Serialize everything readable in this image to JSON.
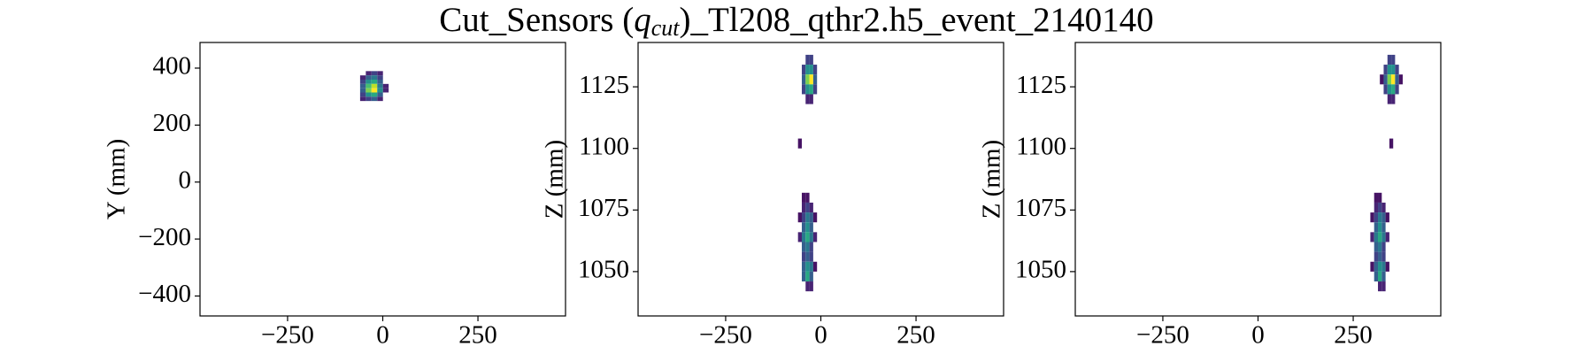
{
  "title": {
    "prefix": "Cut_Sensors (",
    "var": "q",
    "sub": "cut",
    "suffix": ")_Tl208_qthr2.h5_event_2140140"
  },
  "chart_data": [
    {
      "type": "heatmap",
      "ylabel": "Y (mm)",
      "colormap": "viridis",
      "bin_width": [
        15,
        15
      ],
      "xlim": [
        -480,
        480
      ],
      "ylim": [
        -470,
        490
      ],
      "xticks": [
        {
          "value": -250,
          "label": "−250"
        },
        0,
        250
      ],
      "yticks": [
        {
          "value": -400,
          "label": "−400"
        },
        {
          "value": -200,
          "label": "−200"
        },
        0,
        200,
        400
      ],
      "x": [
        -37,
        -22,
        -7,
        -52,
        -37,
        -22,
        -7,
        -52,
        -37,
        -22,
        -7,
        -52,
        -37,
        -22,
        -7,
        8,
        -52,
        -37,
        -22,
        -7,
        8,
        -52,
        -37,
        -22,
        -7,
        -52,
        -37,
        -22,
        -7
      ],
      "y": [
        382,
        382,
        382,
        367,
        367,
        367,
        367,
        352,
        352,
        352,
        352,
        337,
        337,
        337,
        337,
        337,
        322,
        322,
        322,
        322,
        322,
        307,
        307,
        307,
        307,
        292,
        292,
        292,
        292
      ],
      "values": [
        0.1,
        0.2,
        0.1,
        0.1,
        0.3,
        0.4,
        0.2,
        0.2,
        0.5,
        0.6,
        0.3,
        0.3,
        0.7,
        0.9,
        0.4,
        0.1,
        0.3,
        0.8,
        1,
        0.5,
        0.1,
        0.2,
        0.5,
        0.6,
        0.3,
        0.1,
        0.2,
        0.3,
        0.1
      ]
    },
    {
      "type": "heatmap",
      "ylabel": "Z (mm)",
      "colormap": "viridis",
      "bin_width": [
        10,
        4
      ],
      "xlim": [
        -480,
        480
      ],
      "ylim": [
        1032,
        1143
      ],
      "xticks": [
        {
          "value": -250,
          "label": "−250"
        },
        0,
        250
      ],
      "yticks": [
        1050,
        1075,
        1100,
        1125
      ],
      "x": [
        -35,
        -25,
        -45,
        -35,
        -25,
        -15,
        -45,
        -35,
        -25,
        -15,
        -45,
        -35,
        -25,
        -15,
        -35,
        -25,
        -55,
        -45,
        -35,
        -45,
        -35,
        -25,
        -55,
        -45,
        -35,
        -25,
        -15,
        -45,
        -35,
        -25,
        -55,
        -45,
        -35,
        -25,
        -15,
        -45,
        -35,
        -25,
        -45,
        -35,
        -25,
        -45,
        -35,
        -25,
        -15,
        -45,
        -35,
        -25,
        -35,
        -25
      ],
      "y": [
        1136,
        1136,
        1132,
        1132,
        1132,
        1132,
        1128,
        1128,
        1128,
        1128,
        1124,
        1124,
        1124,
        1124,
        1120,
        1120,
        1102,
        1080,
        1080,
        1076,
        1076,
        1076,
        1072,
        1072,
        1072,
        1072,
        1072,
        1068,
        1068,
        1068,
        1064,
        1064,
        1064,
        1064,
        1064,
        1060,
        1060,
        1060,
        1056,
        1056,
        1056,
        1052,
        1052,
        1052,
        1052,
        1048,
        1048,
        1048,
        1044,
        1044
      ],
      "values": [
        0.2,
        0.2,
        0.2,
        0.5,
        0.5,
        0.2,
        0.3,
        0.8,
        1,
        0.3,
        0.2,
        0.5,
        0.6,
        0.2,
        0.1,
        0.1,
        0.05,
        0.05,
        0.05,
        0.1,
        0.2,
        0.1,
        0.05,
        0.2,
        0.4,
        0.3,
        0.05,
        0.3,
        0.5,
        0.3,
        0.1,
        0.4,
        0.6,
        0.4,
        0.1,
        0.3,
        0.4,
        0.2,
        0.2,
        0.3,
        0.2,
        0.3,
        0.5,
        0.4,
        0.05,
        0.3,
        0.6,
        0.3,
        0.1,
        0.1
      ]
    },
    {
      "type": "heatmap",
      "ylabel": "Z (mm)",
      "colormap": "viridis",
      "bin_width": [
        10,
        4
      ],
      "xlim": [
        -480,
        480
      ],
      "ylim": [
        1032,
        1143
      ],
      "xticks": [
        {
          "value": -250,
          "label": "−250"
        },
        0,
        250
      ],
      "yticks": [
        1050,
        1075,
        1100,
        1125
      ],
      "x": [
        345,
        355,
        335,
        345,
        355,
        365,
        325,
        335,
        345,
        355,
        365,
        375,
        335,
        345,
        355,
        365,
        345,
        355,
        350,
        310,
        320,
        310,
        320,
        330,
        300,
        310,
        320,
        330,
        340,
        310,
        320,
        330,
        300,
        310,
        320,
        330,
        340,
        310,
        320,
        330,
        310,
        320,
        330,
        300,
        310,
        320,
        330,
        340,
        310,
        320,
        330,
        320,
        330
      ],
      "y": [
        1136,
        1136,
        1132,
        1132,
        1132,
        1132,
        1128,
        1128,
        1128,
        1128,
        1128,
        1128,
        1124,
        1124,
        1124,
        1124,
        1120,
        1120,
        1102,
        1080,
        1080,
        1076,
        1076,
        1076,
        1072,
        1072,
        1072,
        1072,
        1072,
        1068,
        1068,
        1068,
        1064,
        1064,
        1064,
        1064,
        1064,
        1060,
        1060,
        1060,
        1056,
        1056,
        1056,
        1052,
        1052,
        1052,
        1052,
        1052,
        1048,
        1048,
        1048,
        1044,
        1044
      ],
      "values": [
        0.2,
        0.2,
        0.2,
        0.5,
        0.5,
        0.2,
        0.05,
        0.3,
        0.8,
        1,
        0.3,
        0.05,
        0.2,
        0.5,
        0.6,
        0.2,
        0.1,
        0.1,
        0.05,
        0.05,
        0.05,
        0.1,
        0.2,
        0.1,
        0.05,
        0.2,
        0.4,
        0.3,
        0.05,
        0.3,
        0.5,
        0.3,
        0.1,
        0.4,
        0.6,
        0.4,
        0.1,
        0.3,
        0.4,
        0.2,
        0.2,
        0.3,
        0.2,
        0.05,
        0.3,
        0.5,
        0.4,
        0.05,
        0.3,
        0.6,
        0.3,
        0.1,
        0.1
      ]
    }
  ]
}
